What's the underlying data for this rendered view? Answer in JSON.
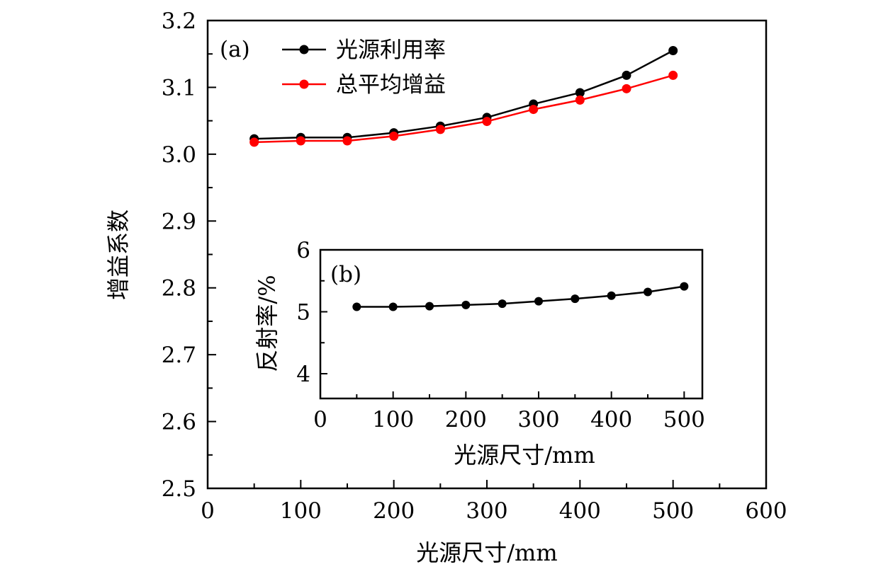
{
  "chart_data": [
    {
      "panel": "(a)",
      "type": "line",
      "xlabel": "光源尺寸/mm",
      "ylabel": "增益系数",
      "xlim": [
        0,
        600
      ],
      "ylim": [
        2.5,
        3.2
      ],
      "xticks": [
        "0",
        "100",
        "200",
        "300",
        "400",
        "500",
        "600"
      ],
      "yticks": [
        "2.5",
        "2.6",
        "2.7",
        "2.8",
        "2.9",
        "3.0",
        "3.1",
        "3.2"
      ],
      "legend_position": "top-left",
      "colors": {
        "光源利用率": "#000000",
        "总平均增益": "#ff0000"
      },
      "x": [
        50,
        100,
        150,
        200,
        250,
        300,
        350,
        400,
        450,
        500
      ],
      "series": [
        {
          "name": "光源利用率",
          "values": [
            3.023,
            3.025,
            3.025,
            3.032,
            3.042,
            3.055,
            3.075,
            3.092,
            3.118,
            3.155
          ]
        },
        {
          "name": "总平均增益",
          "values": [
            3.018,
            3.02,
            3.02,
            3.027,
            3.037,
            3.049,
            3.067,
            3.081,
            3.098,
            3.118
          ]
        }
      ]
    },
    {
      "panel": "(b)",
      "type": "line",
      "xlabel": "光源尺寸/mm",
      "ylabel": "反射率/%",
      "xlim": [
        0,
        525
      ],
      "ylim": [
        3.6,
        6
      ],
      "xticks": [
        "0",
        "100",
        "200",
        "300",
        "400",
        "500"
      ],
      "yticks": [
        "4",
        "5",
        "6"
      ],
      "x": [
        50,
        100,
        150,
        200,
        250,
        300,
        350,
        400,
        450,
        500
      ],
      "series": [
        {
          "name": "反射率",
          "values": [
            5.08,
            5.08,
            5.09,
            5.11,
            5.13,
            5.17,
            5.21,
            5.26,
            5.32,
            5.41
          ]
        }
      ]
    }
  ]
}
